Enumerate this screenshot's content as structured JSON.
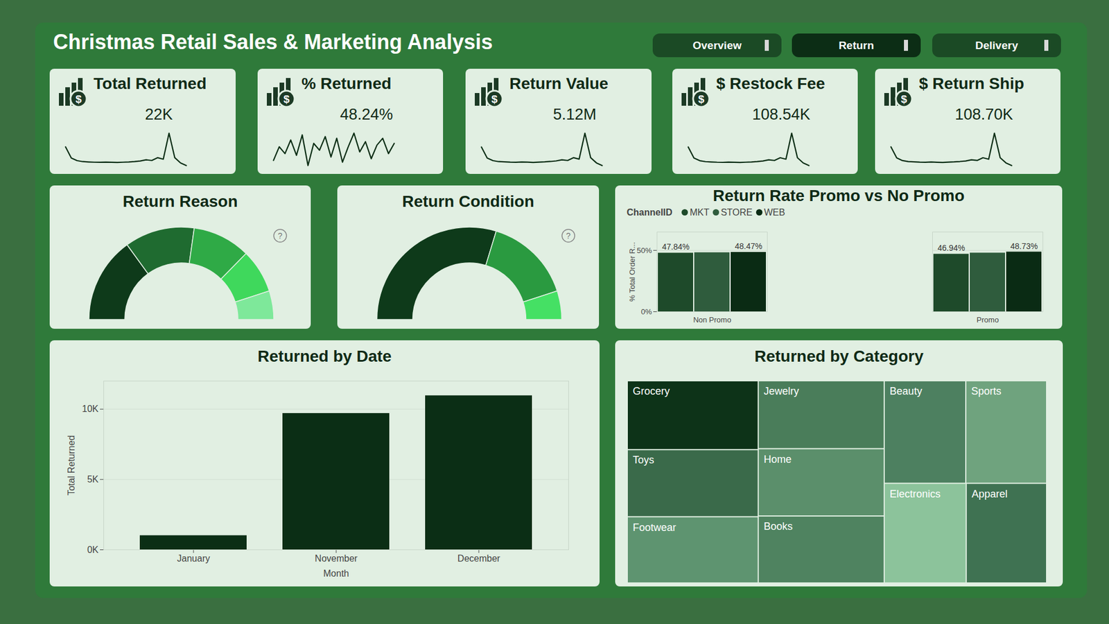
{
  "title": "Christmas Retail Sales & Marketing Analysis",
  "tabs": [
    "Overview",
    "Return",
    "Delivery"
  ],
  "active_tab": "Return",
  "chart_data": [
    {
      "type": "kpi",
      "title": "Total Returned",
      "icon": "$",
      "value": {
        "value": 22000,
        "label": "22K"
      },
      "values": [
        760,
        420,
        340,
        310,
        300,
        292,
        288,
        295,
        290,
        285,
        292,
        300,
        312,
        330,
        365,
        345,
        430,
        385,
        1180,
        430,
        270,
        190
      ],
      "color": "#0b2e15",
      "tick_labels": false
    },
    {
      "type": "kpi",
      "title": "% Returned",
      "icon": "$",
      "value": {
        "value": 48.24,
        "label": "48.24%"
      },
      "values": [
        47.6,
        48.4,
        48.0,
        48.8,
        47.9,
        49.1,
        47.3,
        48.6,
        48.2,
        49.0,
        47.8,
        48.9,
        47.5,
        48.4,
        49.2,
        48.1,
        48.7,
        47.7,
        48.5,
        48.9,
        48.0,
        48.6
      ],
      "color": "#0b2e15",
      "tick_labels": false
    },
    {
      "type": "kpi",
      "title": "Return Value",
      "icon": "$",
      "value": {
        "value": 5120000,
        "label": "5.12M"
      },
      "values": [
        176000,
        98000,
        79000,
        72000,
        70000,
        68000,
        67000,
        69000,
        68000,
        66000,
        68000,
        70000,
        73000,
        77000,
        85000,
        80000,
        100000,
        90000,
        275000,
        100000,
        63000,
        44000
      ],
      "color": "#0b2e15",
      "tick_labels": false
    },
    {
      "type": "kpi",
      "title": "$ Restock Fee",
      "icon": "$",
      "value": {
        "value": 108540,
        "label": "108.54K"
      },
      "values": [
        3740,
        2070,
        1670,
        1530,
        1480,
        1440,
        1420,
        1450,
        1430,
        1400,
        1440,
        1480,
        1540,
        1630,
        1800,
        1700,
        2120,
        1900,
        5820,
        2120,
        1330,
        940
      ],
      "color": "#0b2e15",
      "tick_labels": false
    },
    {
      "type": "kpi",
      "title": "$ Return Ship",
      "icon": "$",
      "value": {
        "value": 108700,
        "label": "108.70K"
      },
      "values": [
        3750,
        2080,
        1680,
        1530,
        1480,
        1440,
        1420,
        1460,
        1430,
        1400,
        1440,
        1480,
        1540,
        1620,
        1800,
        1700,
        2110,
        1890,
        5830,
        2110,
        1330,
        930
      ],
      "color": "#0b2e15",
      "tick_labels": false
    },
    {
      "type": "donut",
      "title": "Return Reason",
      "icon": "?",
      "values": [
        6600,
        5380,
        4450,
        3370,
        2200
      ],
      "colors": [
        "#0e3a1a",
        "#1f6b30",
        "#2faa46",
        "#3fd85c",
        "#7ee89a"
      ]
    },
    {
      "type": "donut",
      "title": "Return Condition",
      "icon": "?",
      "values": [
        13070,
        6730,
        2200
      ],
      "colors": [
        "#0e3a1a",
        "#2a9a40",
        "#45e064"
      ]
    },
    {
      "type": "bar",
      "title": "Return Rate Promo vs No Promo",
      "legend_title": "ChannelID",
      "legend": "top-left",
      "categories": [
        "Non Promo",
        "Promo"
      ],
      "series": [
        {
          "name": "MKT",
          "color": "#1e4a2a",
          "values": [
            47.84,
            46.94
          ],
          "value_labels": [
            "47.84%",
            "46.94%"
          ]
        },
        {
          "name": "STORE",
          "color": "#2f5c3d",
          "values": [
            48.2,
            47.9
          ],
          "value_labels": [
            null,
            null
          ]
        },
        {
          "name": "WEB",
          "color": "#0a2b14",
          "values": [
            48.47,
            48.73
          ],
          "value_labels": [
            "48.47%",
            "48.73%"
          ]
        }
      ],
      "ylabel": "% Total Order R...",
      "ylim": [
        0,
        65
      ],
      "yticks": [
        {
          "value": 0,
          "label": "0%"
        },
        {
          "value": 50,
          "label": "50%"
        }
      ],
      "grid": true,
      "data_labels": true
    },
    {
      "type": "bar",
      "title": "Returned by Date",
      "categories": [
        "January",
        "November",
        "December"
      ],
      "values": [
        1010,
        9700,
        10960
      ],
      "color": "#0b2e15",
      "xlabel": "Month",
      "ylabel": "Total Returned",
      "ylim": [
        0,
        12000
      ],
      "yticks": [
        {
          "value": 0,
          "label": "0K"
        },
        {
          "value": 5000,
          "label": "5K"
        },
        {
          "value": 10000,
          "label": "10K"
        }
      ],
      "grid": true
    },
    {
      "type": "treemap",
      "title": "Returned by Category",
      "categories": [
        "Grocery",
        "Toys",
        "Footwear",
        "Jewelry",
        "Home",
        "Books",
        "Beauty",
        "Sports",
        "Electronics",
        "Apparel"
      ],
      "values": [
        2340,
        2280,
        2250,
        2220,
        2200,
        2190,
        2170,
        2150,
        2120,
        2080
      ],
      "colors": [
        "#0d3318",
        "#3a6a4a",
        "#5e9470",
        "#4a7d5a",
        "#5b8f6b",
        "#4f8360",
        "#4d8060",
        "#6fa37e",
        "#8cc39b",
        "#3f7252"
      ]
    }
  ]
}
